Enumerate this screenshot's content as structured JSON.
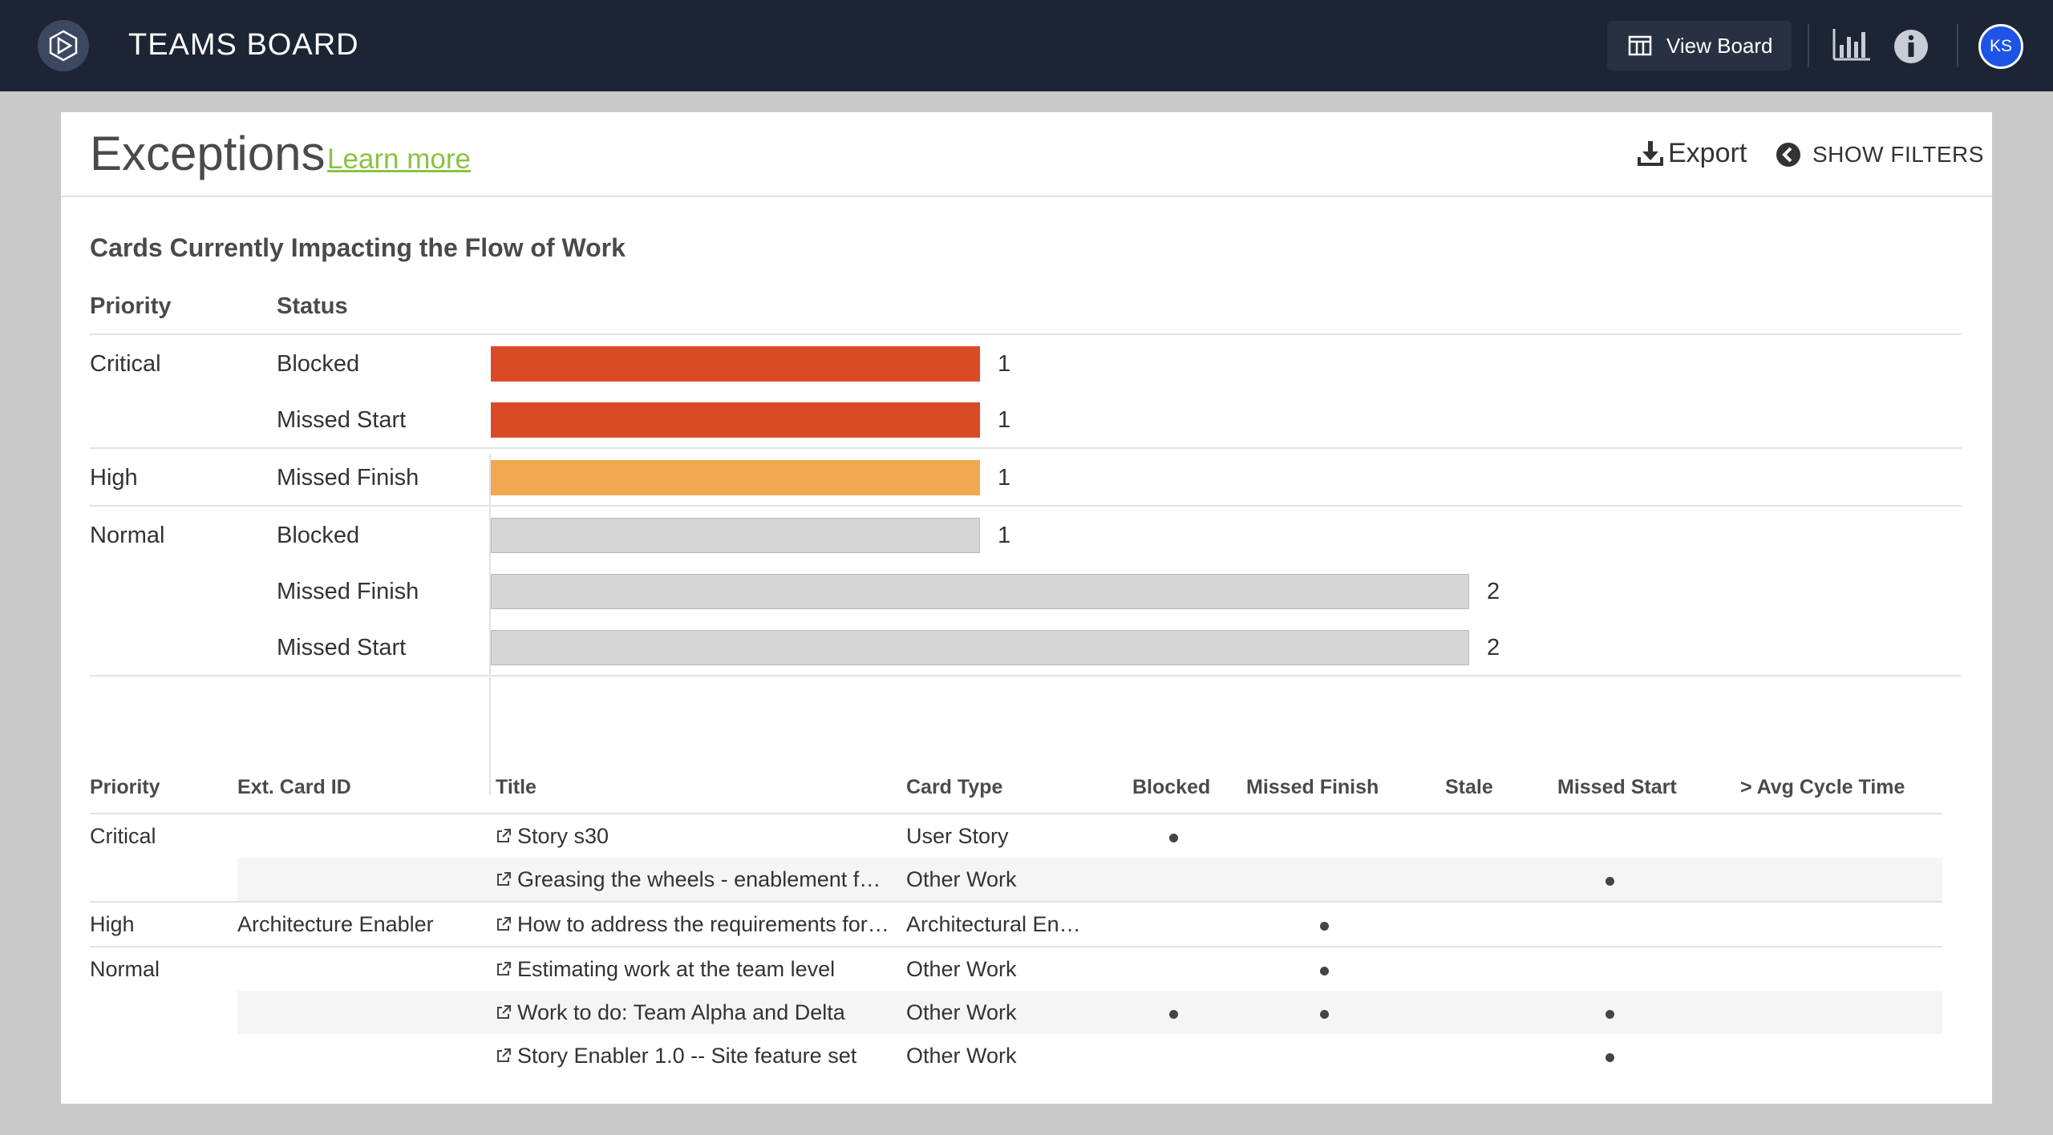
{
  "app": {
    "title": "TEAMS BOARD",
    "view_board_label": "View Board",
    "avatar_initials": "KS"
  },
  "page": {
    "title": "Exceptions",
    "learn_more": "Learn more",
    "export_label": "Export",
    "show_filters_label": "SHOW FILTERS"
  },
  "summary": {
    "title": "Cards Currently Impacting the Flow of Work",
    "col_priority": "Priority",
    "col_status": "Status"
  },
  "chart_data": {
    "type": "bar",
    "orientation": "horizontal",
    "title": "Cards Currently Impacting the Flow of Work",
    "groups": [
      {
        "priority": "Critical",
        "color": "#d94a26",
        "items": [
          {
            "status": "Blocked",
            "value": 1
          },
          {
            "status": "Missed Start",
            "value": 1
          }
        ]
      },
      {
        "priority": "High",
        "color": "#f2a84e",
        "items": [
          {
            "status": "Missed Finish",
            "value": 1
          }
        ]
      },
      {
        "priority": "Normal",
        "color": "#d6d6d6",
        "items": [
          {
            "status": "Blocked",
            "value": 1
          },
          {
            "status": "Missed Finish",
            "value": 2
          },
          {
            "status": "Missed Start",
            "value": 2
          }
        ]
      }
    ],
    "xlim": [
      0,
      2
    ]
  },
  "table": {
    "headers": [
      "Priority",
      "Ext. Card ID",
      "Title",
      "Card Type",
      "Blocked",
      "Missed Finish",
      "Stale",
      "Missed Start",
      "> Avg Cycle Time"
    ],
    "rows": [
      {
        "priority": "Critical",
        "ext_id": "",
        "title": "Story s30",
        "card_type": "User Story",
        "blocked": true,
        "missed_finish": false,
        "stale": false,
        "missed_start": false,
        "avg_cycle": false
      },
      {
        "priority": "",
        "ext_id": "",
        "title": "Greasing the wheels - enablement f…",
        "card_type": "Other Work",
        "blocked": false,
        "missed_finish": false,
        "stale": false,
        "missed_start": true,
        "avg_cycle": false
      },
      {
        "priority": "High",
        "ext_id": "Architecture Enabler",
        "title": "How to address the requirements for…",
        "card_type": "Architectural En…",
        "blocked": false,
        "missed_finish": true,
        "stale": false,
        "missed_start": false,
        "avg_cycle": false
      },
      {
        "priority": "Normal",
        "ext_id": "",
        "title": "Estimating work at the team level",
        "card_type": "Other Work",
        "blocked": false,
        "missed_finish": true,
        "stale": false,
        "missed_start": false,
        "avg_cycle": false
      },
      {
        "priority": "",
        "ext_id": "",
        "title": "Work to do: Team Alpha and Delta",
        "card_type": "Other Work",
        "blocked": true,
        "missed_finish": true,
        "stale": false,
        "missed_start": true,
        "avg_cycle": false
      },
      {
        "priority": "",
        "ext_id": "",
        "title": "Story Enabler 1.0 -- Site feature set",
        "card_type": "Other Work",
        "blocked": false,
        "missed_finish": false,
        "stale": false,
        "missed_start": true,
        "avg_cycle": false
      }
    ]
  },
  "colors": {
    "topbar": "#1d2535",
    "accent_link": "#8ac242",
    "critical": "#d94a26",
    "high": "#f2a84e",
    "normal": "#d6d6d6",
    "avatar": "#1e54e6"
  },
  "icons": [
    "app-logo-icon",
    "board-icon",
    "chart-icon",
    "info-icon",
    "download-icon",
    "chevron-left-circle-icon",
    "external-link-icon"
  ]
}
